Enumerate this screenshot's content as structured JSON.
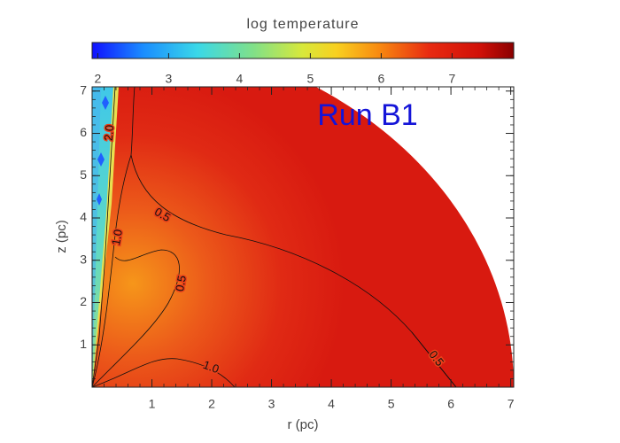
{
  "chart_data": {
    "type": "contour",
    "colorbar": {
      "label": "log temperature",
      "lim": [
        1.92,
        7.87
      ],
      "ticks": [
        2,
        3,
        4,
        5,
        6,
        7
      ]
    },
    "annotation": "Run B1",
    "xlabel": "r (pc)",
    "ylabel": "z (pc)",
    "xlim": [
      0,
      7.05
    ],
    "ylim": [
      0,
      7.1
    ],
    "xticks": [
      1,
      2,
      3,
      4,
      5,
      6,
      7
    ],
    "yticks": [
      1,
      2,
      3,
      4,
      5,
      6,
      7
    ],
    "contours": [
      {
        "value": 2,
        "label": "2.0"
      },
      {
        "value": 1,
        "label": "1.0"
      },
      {
        "value": 0.5,
        "label": "0.5"
      },
      {
        "value": 0.5,
        "label": "0.5"
      },
      {
        "value": 0.5,
        "label": "0.5"
      },
      {
        "value": 1,
        "label": "1.0"
      }
    ]
  }
}
